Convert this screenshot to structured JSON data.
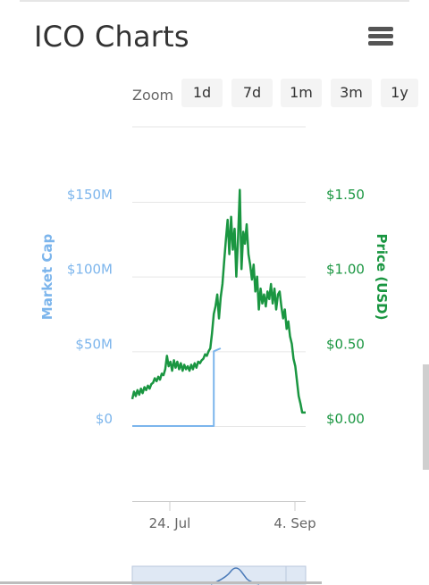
{
  "header": {
    "title": "ICO Charts",
    "menu_icon": "hamburger-menu-icon"
  },
  "zoom": {
    "label": "Zoom",
    "buttons": [
      "1d",
      "7d",
      "1m",
      "3m",
      "1y"
    ]
  },
  "chart_data": {
    "type": "line",
    "title": "",
    "x_ticks": [
      "24. Jul",
      "4. Sep"
    ],
    "y_left": {
      "label": "Market Cap",
      "ticks": [
        "$0",
        "$50M",
        "$100M",
        "$150M"
      ],
      "range": [
        0,
        150000000
      ]
    },
    "y_right": {
      "label": "Price (USD)",
      "ticks": [
        "$0.00",
        "$0.50",
        "$1.00",
        "$1.50"
      ],
      "range": [
        0,
        1.5
      ]
    },
    "grid": true,
    "legend": "none",
    "colors": {
      "market_cap": "#7cb5ec",
      "price": "#1a9641",
      "left_axis": "#7cb5ec",
      "right_axis": "#1a9641"
    },
    "series": [
      {
        "axis": "left",
        "x": [
          0,
          0.47,
          0.47,
          0.51
        ],
        "values": [
          0,
          0,
          50000000,
          52000000
        ]
      },
      {
        "axis": "right",
        "x": [
          0,
          0.01,
          0.02,
          0.03,
          0.04,
          0.05,
          0.06,
          0.07,
          0.08,
          0.09,
          0.1,
          0.11,
          0.12,
          0.13,
          0.14,
          0.15,
          0.16,
          0.17,
          0.18,
          0.19,
          0.2,
          0.21,
          0.22,
          0.23,
          0.24,
          0.25,
          0.26,
          0.27,
          0.28,
          0.29,
          0.3,
          0.31,
          0.32,
          0.33,
          0.34,
          0.35,
          0.36,
          0.37,
          0.38,
          0.39,
          0.4,
          0.41,
          0.42,
          0.43,
          0.44,
          0.45,
          0.46,
          0.47,
          0.48,
          0.49,
          0.5,
          0.51,
          0.52,
          0.53,
          0.54,
          0.55,
          0.56,
          0.57,
          0.58,
          0.59,
          0.6,
          0.61,
          0.62,
          0.63,
          0.64,
          0.65,
          0.66,
          0.67,
          0.68,
          0.69,
          0.7,
          0.71,
          0.72,
          0.73,
          0.74,
          0.75,
          0.76,
          0.77,
          0.78,
          0.79,
          0.8,
          0.81,
          0.82,
          0.83,
          0.84,
          0.85,
          0.86,
          0.87,
          0.88,
          0.89,
          0.9,
          0.91,
          0.92,
          0.93,
          0.94,
          0.95,
          0.96,
          0.97,
          0.98,
          1.0
        ],
        "values": [
          0.18,
          0.23,
          0.2,
          0.24,
          0.21,
          0.25,
          0.22,
          0.26,
          0.24,
          0.27,
          0.25,
          0.28,
          0.29,
          0.32,
          0.3,
          0.33,
          0.31,
          0.35,
          0.34,
          0.38,
          0.47,
          0.4,
          0.43,
          0.37,
          0.44,
          0.39,
          0.43,
          0.38,
          0.42,
          0.37,
          0.41,
          0.38,
          0.4,
          0.37,
          0.41,
          0.38,
          0.42,
          0.39,
          0.43,
          0.42,
          0.44,
          0.45,
          0.48,
          0.47,
          0.5,
          0.52,
          0.62,
          0.75,
          0.8,
          0.88,
          0.72,
          0.86,
          0.95,
          1.1,
          1.25,
          1.38,
          1.15,
          1.4,
          1.18,
          1.32,
          1.0,
          1.25,
          1.58,
          1.05,
          1.3,
          1.22,
          1.35,
          1.15,
          1.08,
          0.98,
          1.08,
          0.9,
          1.0,
          0.78,
          0.92,
          0.82,
          0.88,
          0.8,
          0.9,
          0.85,
          0.95,
          0.82,
          0.92,
          0.78,
          0.88,
          0.9,
          0.8,
          0.72,
          0.78,
          0.65,
          0.7,
          0.6,
          0.55,
          0.45,
          0.4,
          0.3,
          0.2,
          0.15,
          0.09,
          0.09
        ]
      }
    ]
  }
}
